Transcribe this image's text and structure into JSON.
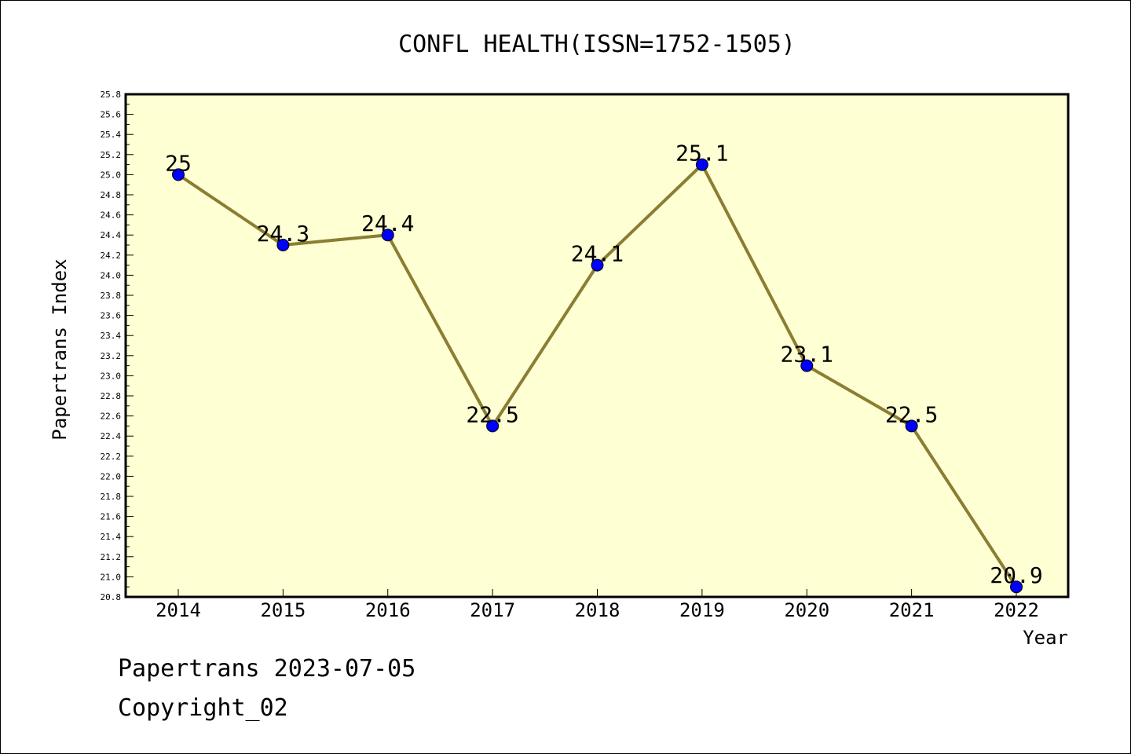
{
  "chart_data": {
    "type": "line",
    "title": "CONFL HEALTH(ISSN=1752-1505)",
    "xlabel": "Year",
    "ylabel": "Papertrans Index",
    "categories": [
      "2014",
      "2015",
      "2016",
      "2017",
      "2018",
      "2019",
      "2020",
      "2021",
      "2022"
    ],
    "series": [
      {
        "values": [
          25,
          24.3,
          24.4,
          22.5,
          24.1,
          25.1,
          23.1,
          22.5,
          20.9
        ],
        "labels": [
          "25",
          "24.3",
          "24.4",
          "22.5",
          "24.1",
          "25.1",
          "23.1",
          "22.5",
          "20.9"
        ]
      }
    ],
    "ylim": [
      20.8,
      25.8
    ],
    "ytick_step": 0.2,
    "grid": false,
    "colors": {
      "plot_background": "#ffffd4",
      "line": "#8b7d32",
      "marker": "#0000ff"
    }
  },
  "footer": {
    "date_line": "Papertrans 2023-07-05",
    "copyright_line": "Copyright_02"
  }
}
